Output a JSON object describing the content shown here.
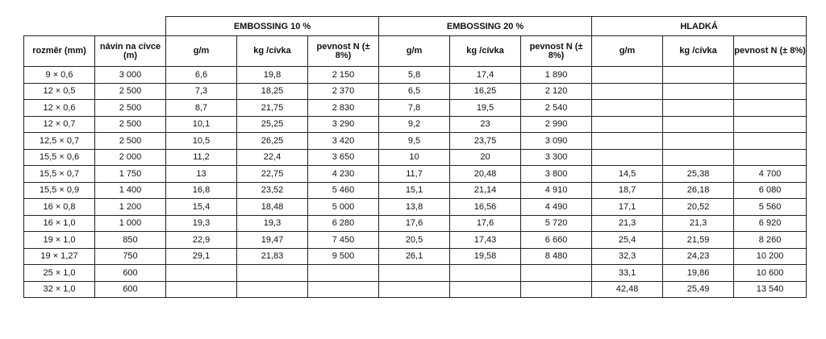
{
  "groups": [
    "EMBOSSING 10 %",
    "EMBOSSING 20 %",
    "HLADKÁ"
  ],
  "columns": {
    "size": "rozměr (mm)",
    "winding": "návin na cívce (m)",
    "gpm": "g/m",
    "kg": "kg /cívka",
    "strength": "pevnost N (± 8%)"
  },
  "rows": [
    [
      "9 × 0,6",
      "3 000",
      "6,6",
      "19,8",
      "2 150",
      "5,8",
      "17,4",
      "1 890",
      "",
      "",
      ""
    ],
    [
      "12 × 0,5",
      "2 500",
      "7,3",
      "18,25",
      "2 370",
      "6,5",
      "16,25",
      "2 120",
      "",
      "",
      ""
    ],
    [
      "12 × 0,6",
      "2 500",
      "8,7",
      "21,75",
      "2 830",
      "7,8",
      "19,5",
      "2 540",
      "",
      "",
      ""
    ],
    [
      "12 × 0,7",
      "2 500",
      "10,1",
      "25,25",
      "3 290",
      "9,2",
      "23",
      "2 990",
      "",
      "",
      ""
    ],
    [
      "12,5 × 0,7",
      "2 500",
      "10,5",
      "26,25",
      "3 420",
      "9,5",
      "23,75",
      "3 090",
      "",
      "",
      ""
    ],
    [
      "15,5 × 0,6",
      "2 000",
      "11,2",
      "22,4",
      "3 650",
      "10",
      "20",
      "3 300",
      "",
      "",
      ""
    ],
    [
      "15,5 × 0,7",
      "1 750",
      "13",
      "22,75",
      "4 230",
      "11,7",
      "20,48",
      "3 800",
      "14,5",
      "25,38",
      "4 700"
    ],
    [
      "15,5 × 0,9",
      "1 400",
      "16,8",
      "23,52",
      "5 460",
      "15,1",
      "21,14",
      "4 910",
      "18,7",
      "26,18",
      "6 080"
    ],
    [
      "16 × 0,8",
      "1 200",
      "15,4",
      "18,48",
      "5 000",
      "13,8",
      "16,56",
      "4 490",
      "17,1",
      "20,52",
      "5 560"
    ],
    [
      "16 × 1,0",
      "1 000",
      "19,3",
      "19,3",
      "6 280",
      "17,6",
      "17,6",
      "5 720",
      "21,3",
      "21,3",
      "6 920"
    ],
    [
      "19 × 1,0",
      "850",
      "22,9",
      "19,47",
      "7 450",
      "20,5",
      "17,43",
      "6 660",
      "25,4",
      "21,59",
      "8 260"
    ],
    [
      "19 × 1,27",
      "750",
      "29,1",
      "21,83",
      "9 500",
      "26,1",
      "19,58",
      "8 480",
      "32,3",
      "24,23",
      "10 200"
    ],
    [
      "25 × 1,0",
      "600",
      "",
      "",
      "",
      "",
      "",
      "",
      "33,1",
      "19,86",
      "10 600"
    ],
    [
      "32 × 1,0",
      "600",
      "",
      "",
      "",
      "",
      "",
      "",
      "42,48",
      "25,49",
      "13 540"
    ]
  ]
}
